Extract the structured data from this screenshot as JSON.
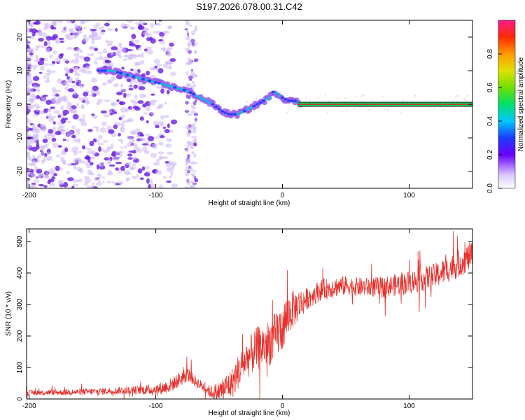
{
  "title": "S197.2026.078.00.31.C42",
  "colors": {
    "snr_line": "#e8302a",
    "ridge_outer": "#9b5cf0",
    "ridge_core": "#00c8d0",
    "scatter_light": "#cdb8f5",
    "scatter_dark": "#6a1de0",
    "carrier_line": "#e01a1a"
  },
  "chart_data": [
    {
      "type": "heatmap",
      "name": "spectrogram",
      "title": "S197.2026.078.00.31.C42",
      "xlabel": "Height of straight line (km)",
      "ylabel": "Frequency (Hz)",
      "xlim": [
        -202,
        150
      ],
      "ylim": [
        -25,
        25
      ],
      "xticks": [
        -200,
        -100,
        0,
        100
      ],
      "yticks": [
        -20,
        -10,
        0,
        10,
        20
      ],
      "xtick_labels": [
        "-200",
        "-100",
        "0",
        "100"
      ],
      "ytick_labels": [
        "-20",
        "-10",
        "0",
        "10",
        "20"
      ],
      "ridge": {
        "x": [
          -145,
          -135,
          -125,
          -115,
          -105,
          -95,
          -85,
          -75,
          -65,
          -55,
          -48,
          -42,
          -36,
          -30,
          -25,
          -20,
          -15,
          -10,
          -7,
          -4,
          0,
          5,
          10,
          15
        ],
        "y": [
          10,
          10,
          9,
          8,
          7,
          6,
          5,
          4,
          2,
          0,
          -2,
          -3,
          -3,
          -2,
          -1,
          0,
          1,
          2,
          4,
          3,
          2,
          1,
          1,
          0
        ]
      },
      "carrier": {
        "y": 0,
        "x_start": 12,
        "x_end": 150
      },
      "colorbar": {
        "label": "Normalized spectral amplitude",
        "range": [
          0,
          1
        ],
        "ticks": [
          0.0,
          0.2,
          0.4,
          0.6,
          0.8
        ],
        "tick_labels": [
          "0.0",
          "0.2",
          "0.4",
          "0.6",
          "0.8"
        ]
      }
    },
    {
      "type": "line",
      "name": "snr",
      "xlabel": "Height of straight line (km)",
      "ylabel": "SNR (10 * v/v)",
      "xlim": [
        -202,
        150
      ],
      "ylim": [
        0,
        540
      ],
      "xticks": [
        -200,
        -100,
        0,
        100
      ],
      "yticks": [
        0,
        100,
        200,
        300,
        400,
        500
      ],
      "xtick_labels": [
        "-200",
        "-100",
        "0",
        "100"
      ],
      "ytick_labels": [
        "0",
        "100",
        "200",
        "300",
        "400",
        "500"
      ],
      "envelope": {
        "x": [
          -202,
          -160,
          -120,
          -100,
          -90,
          -80,
          -75,
          -70,
          -65,
          -60,
          -55,
          -50,
          -40,
          -30,
          -20,
          -10,
          -5,
          0,
          5,
          10,
          20,
          30,
          40,
          50,
          60,
          80,
          100,
          120,
          140,
          150
        ],
        "y": [
          20,
          22,
          28,
          30,
          40,
          65,
          80,
          60,
          45,
          30,
          20,
          25,
          50,
          120,
          160,
          180,
          200,
          230,
          270,
          290,
          320,
          345,
          355,
          360,
          355,
          355,
          370,
          390,
          430,
          460
        ]
      },
      "noise_amplitude": {
        "x": [
          -202,
          -120,
          -80,
          -60,
          -40,
          -20,
          0,
          20,
          60,
          150
        ],
        "y": [
          8,
          12,
          25,
          15,
          50,
          70,
          80,
          35,
          30,
          45
        ]
      }
    }
  ]
}
